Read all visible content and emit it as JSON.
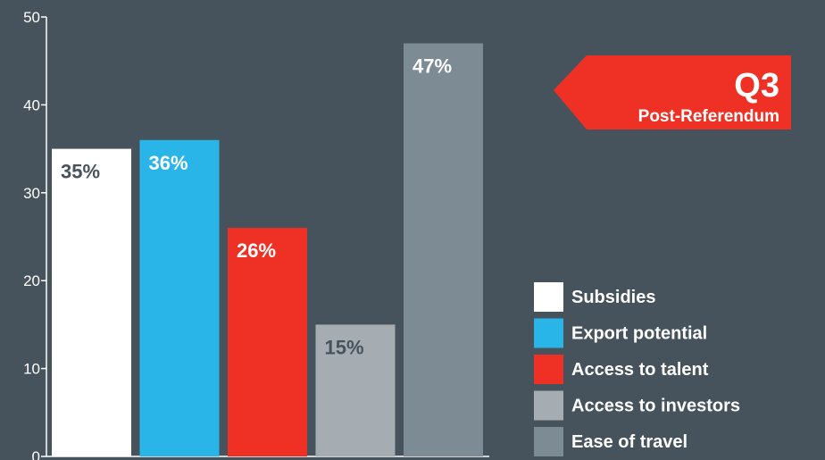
{
  "chart_data": {
    "type": "bar",
    "title": "",
    "xlabel": "",
    "ylabel": "",
    "ylim": [
      0,
      50
    ],
    "yticks": [
      0,
      10,
      20,
      30,
      40,
      50
    ],
    "grid": false,
    "legend_position": "bottom-right",
    "series": [
      {
        "name": "Subsidies",
        "value": 35,
        "label": "35%",
        "color": "#ffffff",
        "label_color": "#47535c"
      },
      {
        "name": "Export potential",
        "value": 36,
        "label": "36%",
        "color": "#29b5e8",
        "label_color": "#ffffff"
      },
      {
        "name": "Access to talent",
        "value": 26,
        "label": "26%",
        "color": "#ee3124",
        "label_color": "#ffffff"
      },
      {
        "name": "Access to investors",
        "value": 15,
        "label": "15%",
        "color": "#a5adb3",
        "label_color": "#47535c"
      },
      {
        "name": "Ease of travel",
        "value": 47,
        "label": "47%",
        "color": "#7d8b94",
        "label_color": "#ffffff"
      }
    ]
  },
  "badge": {
    "title": "Q3",
    "subtitle": "Post-Referendum",
    "color": "#ee3124"
  },
  "colors": {
    "background": "#47535c",
    "axis": "#ffffff"
  }
}
